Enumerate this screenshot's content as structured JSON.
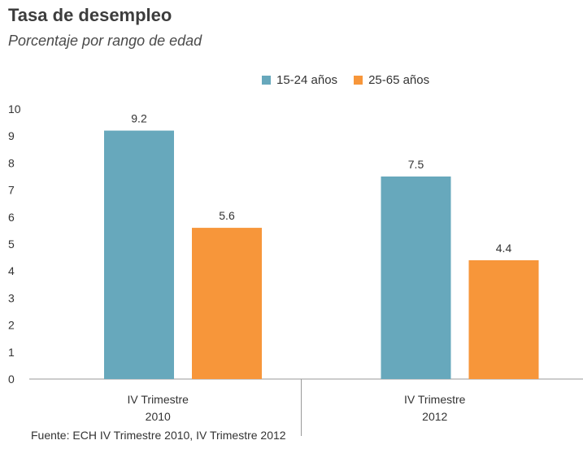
{
  "header": {
    "title": "Tasa de desempleo",
    "subtitle": "Porcentaje por rango de edad"
  },
  "footer": {
    "source": "Fuente: ECH IV Trimestre 2010, IV Trimestre 2012"
  },
  "colors": {
    "series_1": "#67a8bc",
    "series_2": "#f7963a",
    "axis": "#999999"
  },
  "chart_data": {
    "type": "bar",
    "title": "Tasa de desempleo",
    "subtitle": "Porcentaje por rango de edad",
    "categories": [
      [
        "IV Trimestre",
        "2010"
      ],
      [
        "IV Trimestre",
        "2012"
      ]
    ],
    "series": [
      {
        "name": "15-24 años",
        "values": [
          9.2,
          7.5
        ]
      },
      {
        "name": "25-65 años",
        "values": [
          5.6,
          4.4
        ]
      }
    ],
    "yticks": [
      0,
      1,
      2,
      3,
      4,
      5,
      6,
      7,
      8,
      9,
      10
    ],
    "ylim": [
      0,
      10
    ],
    "grid": false,
    "legend": "top-center"
  }
}
